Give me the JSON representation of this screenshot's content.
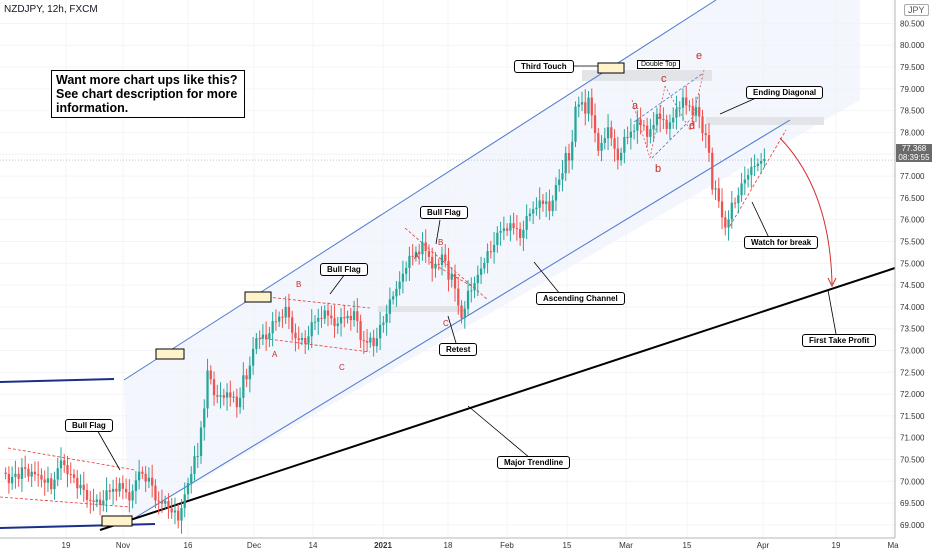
{
  "header": {
    "symbol_title": "NZDJPY, 12h, FXCM",
    "currency": "JPY"
  },
  "promo": {
    "lines": [
      "Want more chart ups like this?",
      "See chart description for more",
      "information."
    ]
  },
  "current_price": {
    "value": "77.368",
    "countdown": "08:39:55"
  },
  "annotations": {
    "third_touch": "Third Touch",
    "double_top": "Double Top",
    "ending_diagonal": "Ending Diagonal",
    "watch_for_break": "Watch for break",
    "first_take_profit": "First Take Profit",
    "ascending_channel": "Ascending Channel",
    "major_trendline": "Major Trendline",
    "retest": "Retest",
    "bull_flag_1": "Bull Flag",
    "bull_flag_2": "Bull Flag",
    "bull_flag_3": "Bull Flag"
  },
  "waves": {
    "flag1": [
      "A",
      "B",
      "C"
    ],
    "flag2": [
      "A",
      "B",
      "C"
    ],
    "diagonal": [
      "a",
      "b",
      "c",
      "d",
      "e"
    ]
  },
  "colors": {
    "up": "#26a69a",
    "down": "#ef5350",
    "channel": "#4f7ad0",
    "trendline": "#000000",
    "flag": "#e53935",
    "wave": "#c62828"
  },
  "chart_data": {
    "type": "candlestick",
    "title": "NZDJPY, 12h, FXCM",
    "ylim": [
      68.7,
      80.9
    ],
    "yticks": [
      69.0,
      69.5,
      70.0,
      70.5,
      71.0,
      71.5,
      72.0,
      72.5,
      73.0,
      73.5,
      74.0,
      74.5,
      75.0,
      75.5,
      76.0,
      76.5,
      77.0,
      77.5,
      78.0,
      78.5,
      79.0,
      79.5,
      80.0,
      80.5
    ],
    "xticks": [
      "19",
      "Nov",
      "16",
      "Dec",
      "14",
      "2021",
      "18",
      "Feb",
      "15",
      "Mar",
      "15",
      "Apr",
      "19",
      "Ma"
    ],
    "last_price": 77.368,
    "price_path": [
      [
        70.2,
        69.7
      ],
      [
        70.45,
        69.8
      ],
      [
        70.3,
        69.9
      ],
      [
        70.0,
        70.2
      ],
      [
        69.7,
        70.3
      ],
      [
        70.5,
        70.4
      ],
      [
        70.2,
        70.0
      ],
      [
        70.0,
        69.6
      ],
      [
        69.6,
        69.4
      ],
      [
        69.4,
        69.7
      ],
      [
        69.7,
        70.0
      ],
      [
        70.05,
        69.6
      ],
      [
        69.5,
        69.8
      ],
      [
        70.25,
        70.1
      ],
      [
        70.15,
        69.8
      ],
      [
        69.6,
        69.3
      ],
      [
        69.3,
        69.7
      ],
      [
        69.0,
        69.5
      ],
      [
        70.0,
        69.8
      ],
      [
        70.5,
        70.9
      ],
      [
        72.8,
        71.5
      ],
      [
        72.0,
        71.7
      ],
      [
        72.1,
        71.8
      ],
      [
        71.6,
        72.1
      ],
      [
        72.2,
        72.9
      ],
      [
        73.3,
        73.2
      ],
      [
        73.2,
        73.5
      ],
      [
        73.6,
        73.9
      ],
      [
        74.1,
        73.6
      ],
      [
        73.3,
        73.2
      ],
      [
        73.1,
        73.4
      ],
      [
        73.6,
        73.9
      ],
      [
        74.0,
        73.6
      ],
      [
        73.5,
        73.8
      ],
      [
        73.7,
        73.9
      ],
      [
        74.0,
        73.5
      ],
      [
        73.3,
        72.9
      ],
      [
        73.0,
        73.5
      ],
      [
        73.6,
        73.8
      ],
      [
        74.2,
        74.4
      ],
      [
        74.8,
        74.6
      ],
      [
        75.1,
        75.4
      ],
      [
        75.6,
        75.0
      ],
      [
        74.8,
        75.2
      ],
      [
        75.3,
        74.8
      ],
      [
        74.9,
        74.2
      ],
      [
        73.7,
        73.9
      ],
      [
        74.3,
        74.7
      ],
      [
        74.9,
        74.8
      ],
      [
        75.2,
        75.5
      ],
      [
        75.7,
        75.9
      ],
      [
        76.0,
        75.6
      ],
      [
        75.5,
        75.9
      ],
      [
        76.1,
        76.3
      ],
      [
        76.5,
        76.2
      ],
      [
        76.1,
        76.6
      ],
      [
        76.9,
        77.0
      ],
      [
        77.2,
        78.0
      ],
      [
        78.5,
        79.2
      ],
      [
        79.0,
        78.0
      ],
      [
        77.5,
        77.9
      ],
      [
        78.2,
        77.8
      ],
      [
        77.3,
        77.6
      ],
      [
        77.8,
        78.2
      ],
      [
        78.4,
        77.9
      ],
      [
        77.8,
        78.3
      ],
      [
        78.5,
        78.1
      ],
      [
        78.0,
        78.4
      ],
      [
        78.6,
        78.3
      ],
      [
        78.5,
        79.1
      ],
      [
        78.7,
        78.1
      ],
      [
        78.0,
        77.7
      ],
      [
        76.9,
        76.0
      ],
      [
        75.8,
        75.9
      ],
      [
        76.3,
        76.7
      ],
      [
        76.9,
        77.0
      ],
      [
        77.2,
        77.35
      ],
      [
        77.4,
        77.37
      ]
    ]
  }
}
